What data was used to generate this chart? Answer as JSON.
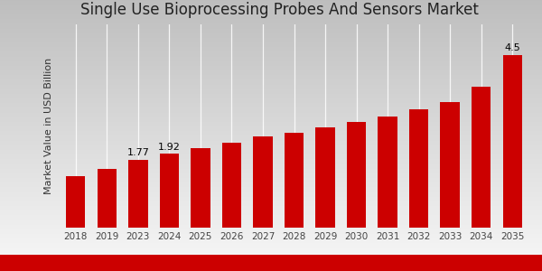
{
  "title": "Single Use Bioprocessing Probes And Sensors Market",
  "ylabel": "Market Value in USD Billion",
  "categories": [
    "2018",
    "2019",
    "2023",
    "2024",
    "2025",
    "2026",
    "2027",
    "2028",
    "2029",
    "2030",
    "2031",
    "2032",
    "2033",
    "2034",
    "2035"
  ],
  "values": [
    1.35,
    1.52,
    1.77,
    1.92,
    2.08,
    2.22,
    2.37,
    2.48,
    2.62,
    2.75,
    2.9,
    3.08,
    3.28,
    3.68,
    4.5
  ],
  "bar_color": "#cc0000",
  "bar_annotations": {
    "2023": "1.77",
    "2024": "1.92",
    "2035": "4.5"
  },
  "title_fontsize": 12,
  "ylabel_fontsize": 8,
  "tick_fontsize": 7.5,
  "annotation_fontsize": 8,
  "ylim": [
    0,
    5.3
  ],
  "bottom_stripe_color": "#cc0000",
  "gridline_color": "#cccccc",
  "bg_top": "#bebebe",
  "bg_bottom": "#f8f8f8"
}
